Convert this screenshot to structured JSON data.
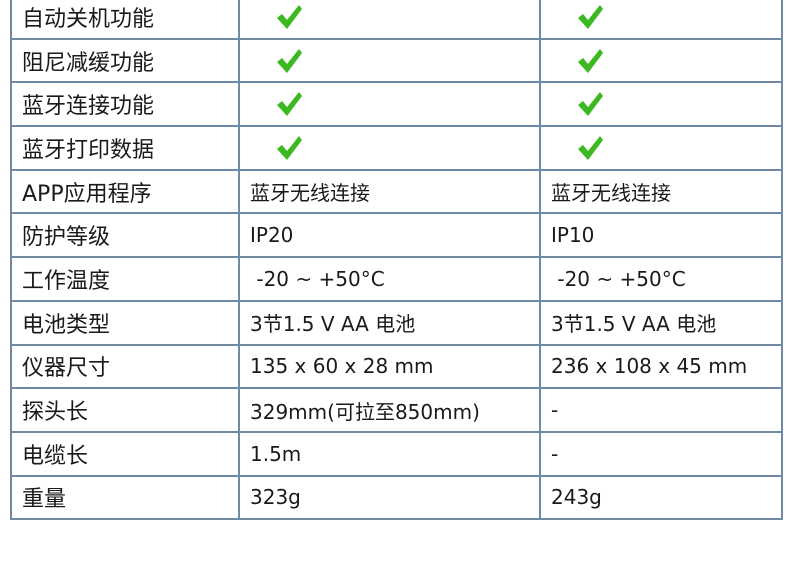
{
  "colors": {
    "border": "#6f8ba3",
    "check": "#3cb820"
  },
  "rows": [
    {
      "label": "自动关机功能",
      "a": "check-icon",
      "b": "check-icon"
    },
    {
      "label": "阻尼减缓功能",
      "a": "check-icon",
      "b": "check-icon"
    },
    {
      "label": "蓝牙连接功能",
      "a": "check-icon",
      "b": "check-icon"
    },
    {
      "label": "蓝牙打印数据",
      "a": "check-icon",
      "b": "check-icon"
    },
    {
      "label": "APP应用程序",
      "a": "蓝牙无线连接",
      "b": "蓝牙无线连接"
    },
    {
      "label": "防护等级",
      "a": "IP20",
      "b": "IP10"
    },
    {
      "label": "工作温度",
      "a": " -20 ~ +50°C",
      "b": " -20 ~ +50°C"
    },
    {
      "label": "电池类型",
      "a": "3节1.5 V AA 电池",
      "b": "3节1.5 V AA 电池"
    },
    {
      "label": "仪器尺寸",
      "a": "135 x 60 x 28 mm",
      "b": "236 x 108 x 45 mm"
    },
    {
      "label": "探头长",
      "a": "329mm(可拉至850mm)",
      "b": "-"
    },
    {
      "label": "电缆长",
      "a": "1.5m",
      "b": "-"
    },
    {
      "label": "重量",
      "a": "323g",
      "b": "243g"
    }
  ]
}
